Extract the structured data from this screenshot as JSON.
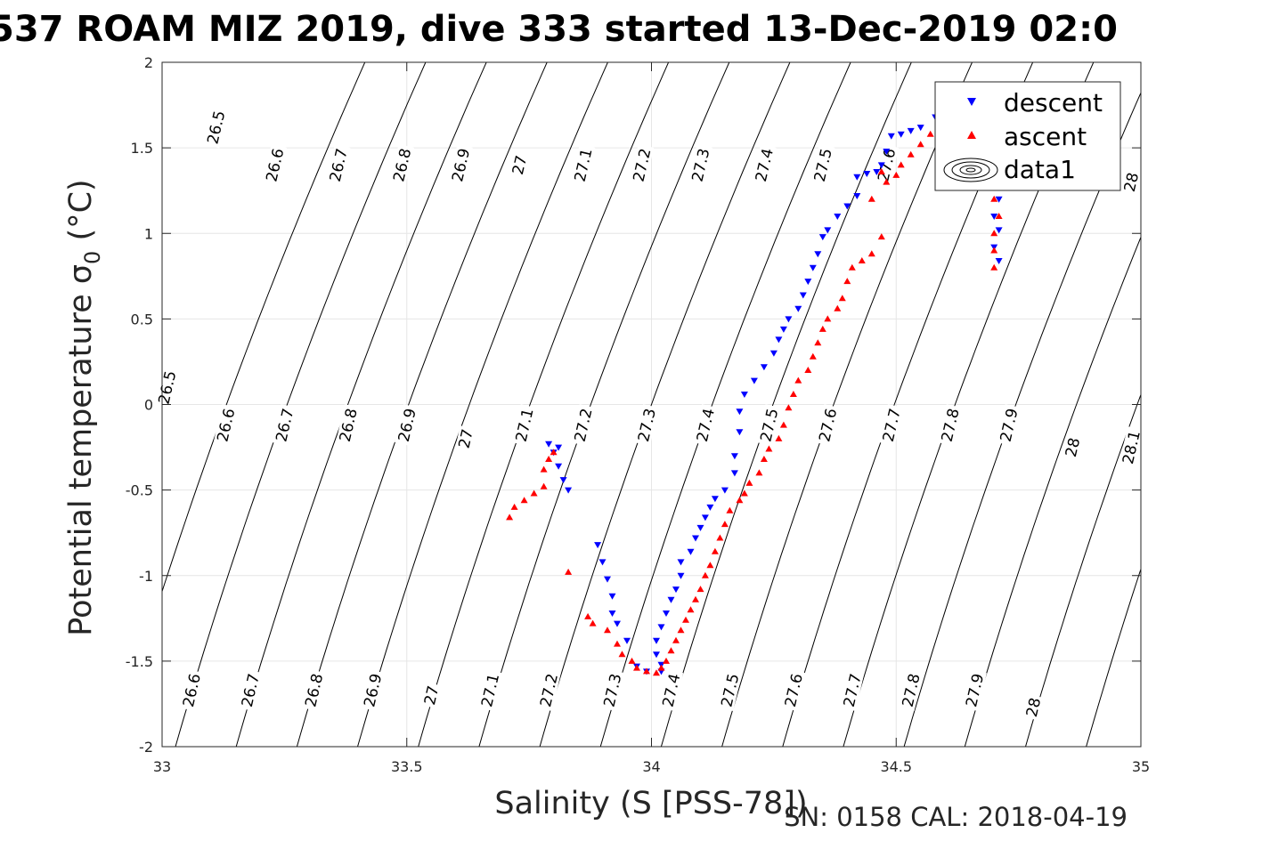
{
  "chart_data": {
    "type": "scatter",
    "title": "537 ROAM MIZ 2019, dive 333 started 13-Dec-2019 02:0",
    "xlabel": "Salinity (S [PSS-78])",
    "ylabel_main": "Potential temperature ",
    "ylabel_sym": "σ",
    "ylabel_sub": "0",
    "ylabel_unit": " (°C)",
    "footer": "SN: 0158  CAL: 2018-04-19",
    "xlim": [
      33,
      35
    ],
    "ylim": [
      -2,
      2
    ],
    "xticks": [
      33,
      33.5,
      34,
      34.5,
      35
    ],
    "xtick_labels": [
      "33",
      "33.5",
      "34",
      "34.5",
      "35"
    ],
    "yticks": [
      -2,
      -1.5,
      -1,
      -0.5,
      0,
      0.5,
      1,
      1.5,
      2
    ],
    "ytick_labels": [
      "-2",
      "-1.5",
      "-1",
      "-0.5",
      "0",
      "0.5",
      "1",
      "1.5",
      "2"
    ],
    "grid": true,
    "legend_position": "top-right",
    "legend": [
      "descent",
      "ascent",
      "data1"
    ],
    "colors": {
      "descent": "#0000ff",
      "ascent": "#ff0000",
      "contour": "#000000",
      "grid": "#e6e6e6"
    },
    "density_contours": {
      "levels": [
        26.5,
        26.6,
        26.7,
        26.8,
        26.9,
        27,
        27.1,
        27.2,
        27.3,
        27.4,
        27.5,
        27.6,
        27.7,
        27.8,
        27.9,
        28,
        28.1
      ],
      "labels": [
        {
          "text": "26.5",
          "s": 33.11,
          "t": 1.62
        },
        {
          "text": "26.6",
          "s": 33.23,
          "t": 1.4
        },
        {
          "text": "26.7",
          "s": 33.36,
          "t": 1.4
        },
        {
          "text": "26.8",
          "s": 33.49,
          "t": 1.4
        },
        {
          "text": "26.9",
          "s": 33.61,
          "t": 1.4
        },
        {
          "text": "27",
          "s": 33.73,
          "t": 1.4
        },
        {
          "text": "27.1",
          "s": 33.86,
          "t": 1.4
        },
        {
          "text": "27.2",
          "s": 33.98,
          "t": 1.4
        },
        {
          "text": "27.3",
          "s": 34.1,
          "t": 1.4
        },
        {
          "text": "27.4",
          "s": 34.23,
          "t": 1.4
        },
        {
          "text": "27.5",
          "s": 34.35,
          "t": 1.4
        },
        {
          "text": "27.6",
          "s": 34.48,
          "t": 1.4
        },
        {
          "text": "28",
          "s": 34.98,
          "t": 1.3
        },
        {
          "text": "26.5",
          "s": 33.01,
          "t": 0.1
        },
        {
          "text": "26.6",
          "s": 33.13,
          "t": -0.12
        },
        {
          "text": "26.7",
          "s": 33.25,
          "t": -0.12
        },
        {
          "text": "26.8",
          "s": 33.38,
          "t": -0.12
        },
        {
          "text": "26.9",
          "s": 33.5,
          "t": -0.12
        },
        {
          "text": "27",
          "s": 33.62,
          "t": -0.2
        },
        {
          "text": "27.1",
          "s": 33.74,
          "t": -0.12
        },
        {
          "text": "27.2",
          "s": 33.86,
          "t": -0.12
        },
        {
          "text": "27.3",
          "s": 33.99,
          "t": -0.12
        },
        {
          "text": "27.4",
          "s": 34.11,
          "t": -0.12
        },
        {
          "text": "27.5",
          "s": 34.24,
          "t": -0.12
        },
        {
          "text": "27.6",
          "s": 34.36,
          "t": -0.12
        },
        {
          "text": "27.7",
          "s": 34.49,
          "t": -0.12
        },
        {
          "text": "27.8",
          "s": 34.61,
          "t": -0.12
        },
        {
          "text": "27.9",
          "s": 34.73,
          "t": -0.12
        },
        {
          "text": "28",
          "s": 34.86,
          "t": -0.25
        },
        {
          "text": "28.1",
          "s": 34.98,
          "t": -0.25
        },
        {
          "text": "26.6",
          "s": 33.06,
          "t": -1.67
        },
        {
          "text": "26.7",
          "s": 33.18,
          "t": -1.67
        },
        {
          "text": "26.8",
          "s": 33.31,
          "t": -1.67
        },
        {
          "text": "26.9",
          "s": 33.43,
          "t": -1.67
        },
        {
          "text": "27",
          "s": 33.55,
          "t": -1.7
        },
        {
          "text": "27.1",
          "s": 33.67,
          "t": -1.67
        },
        {
          "text": "27.2",
          "s": 33.79,
          "t": -1.67
        },
        {
          "text": "27.3",
          "s": 33.92,
          "t": -1.67
        },
        {
          "text": "27.4",
          "s": 34.04,
          "t": -1.67
        },
        {
          "text": "27.5",
          "s": 34.16,
          "t": -1.67
        },
        {
          "text": "27.6",
          "s": 34.29,
          "t": -1.67
        },
        {
          "text": "27.7",
          "s": 34.41,
          "t": -1.67
        },
        {
          "text": "27.8",
          "s": 34.53,
          "t": -1.67
        },
        {
          "text": "27.9",
          "s": 34.66,
          "t": -1.67
        },
        {
          "text": "28",
          "s": 34.78,
          "t": -1.77
        }
      ]
    },
    "series": [
      {
        "name": "descent",
        "marker": "triangle-down",
        "points": [
          [
            34.71,
            0.84
          ],
          [
            34.7,
            0.92
          ],
          [
            34.71,
            1.02
          ],
          [
            34.7,
            1.1
          ],
          [
            34.71,
            1.2
          ],
          [
            34.71,
            1.28
          ],
          [
            34.7,
            1.38
          ],
          [
            34.7,
            1.48
          ],
          [
            34.69,
            1.56
          ],
          [
            34.67,
            1.6
          ],
          [
            34.64,
            1.62
          ],
          [
            34.61,
            1.66
          ],
          [
            34.58,
            1.68
          ],
          [
            34.55,
            1.62
          ],
          [
            34.53,
            1.6
          ],
          [
            34.51,
            1.58
          ],
          [
            34.49,
            1.57
          ],
          [
            34.48,
            1.48
          ],
          [
            34.47,
            1.4
          ],
          [
            34.46,
            1.36
          ],
          [
            34.44,
            1.35
          ],
          [
            34.42,
            1.33
          ],
          [
            34.42,
            1.22
          ],
          [
            34.4,
            1.16
          ],
          [
            34.38,
            1.1
          ],
          [
            34.36,
            1.02
          ],
          [
            34.35,
            0.98
          ],
          [
            34.34,
            0.88
          ],
          [
            34.33,
            0.8
          ],
          [
            34.32,
            0.72
          ],
          [
            34.31,
            0.64
          ],
          [
            34.3,
            0.56
          ],
          [
            34.28,
            0.5
          ],
          [
            34.27,
            0.44
          ],
          [
            34.26,
            0.38
          ],
          [
            34.25,
            0.3
          ],
          [
            34.23,
            0.22
          ],
          [
            34.21,
            0.14
          ],
          [
            34.19,
            0.06
          ],
          [
            34.18,
            -0.04
          ],
          [
            34.18,
            -0.16
          ],
          [
            34.17,
            -0.3
          ],
          [
            34.17,
            -0.4
          ],
          [
            34.15,
            -0.5
          ],
          [
            34.13,
            -0.55
          ],
          [
            34.12,
            -0.6
          ],
          [
            34.11,
            -0.66
          ],
          [
            34.1,
            -0.72
          ],
          [
            34.09,
            -0.78
          ],
          [
            34.08,
            -0.86
          ],
          [
            34.06,
            -0.92
          ],
          [
            34.06,
            -1.0
          ],
          [
            34.05,
            -1.08
          ],
          [
            34.04,
            -1.14
          ],
          [
            34.03,
            -1.22
          ],
          [
            34.02,
            -1.3
          ],
          [
            34.01,
            -1.38
          ],
          [
            34.01,
            -1.46
          ],
          [
            34.02,
            -1.52
          ],
          [
            34.02,
            -1.56
          ],
          [
            33.99,
            -1.56
          ],
          [
            33.97,
            -1.53
          ],
          [
            33.95,
            -1.38
          ],
          [
            33.93,
            -1.28
          ],
          [
            33.92,
            -1.22
          ],
          [
            33.92,
            -1.12
          ],
          [
            33.91,
            -1.02
          ],
          [
            33.9,
            -0.92
          ],
          [
            33.89,
            -0.82
          ],
          [
            33.83,
            -0.5
          ],
          [
            33.82,
            -0.44
          ],
          [
            33.81,
            -0.36
          ],
          [
            33.8,
            -0.28
          ],
          [
            33.81,
            -0.25
          ],
          [
            33.79,
            -0.23
          ]
        ]
      },
      {
        "name": "ascent",
        "marker": "triangle-up",
        "points": [
          [
            34.7,
            0.8
          ],
          [
            34.7,
            0.9
          ],
          [
            34.7,
            1.0
          ],
          [
            34.71,
            1.1
          ],
          [
            34.7,
            1.2
          ],
          [
            34.71,
            1.3
          ],
          [
            34.7,
            1.38
          ],
          [
            34.68,
            1.45
          ],
          [
            34.66,
            1.52
          ],
          [
            34.64,
            1.58
          ],
          [
            34.62,
            1.62
          ],
          [
            34.6,
            1.64
          ],
          [
            34.57,
            1.58
          ],
          [
            34.55,
            1.52
          ],
          [
            34.53,
            1.46
          ],
          [
            34.51,
            1.4
          ],
          [
            34.5,
            1.34
          ],
          [
            34.48,
            1.3
          ],
          [
            34.47,
            1.36
          ],
          [
            34.45,
            1.2
          ],
          [
            34.47,
            0.98
          ],
          [
            34.45,
            0.88
          ],
          [
            34.43,
            0.84
          ],
          [
            34.41,
            0.8
          ],
          [
            34.4,
            0.72
          ],
          [
            34.39,
            0.62
          ],
          [
            34.38,
            0.56
          ],
          [
            34.36,
            0.5
          ],
          [
            34.35,
            0.44
          ],
          [
            34.34,
            0.36
          ],
          [
            34.33,
            0.28
          ],
          [
            34.32,
            0.2
          ],
          [
            34.3,
            0.14
          ],
          [
            34.29,
            0.06
          ],
          [
            34.28,
            -0.02
          ],
          [
            34.27,
            -0.12
          ],
          [
            34.26,
            -0.2
          ],
          [
            34.24,
            -0.26
          ],
          [
            34.23,
            -0.32
          ],
          [
            34.22,
            -0.4
          ],
          [
            34.2,
            -0.46
          ],
          [
            34.19,
            -0.52
          ],
          [
            34.18,
            -0.56
          ],
          [
            34.16,
            -0.62
          ],
          [
            34.15,
            -0.7
          ],
          [
            34.14,
            -0.78
          ],
          [
            34.13,
            -0.86
          ],
          [
            34.12,
            -0.94
          ],
          [
            34.11,
            -1.0
          ],
          [
            34.1,
            -1.08
          ],
          [
            34.09,
            -1.14
          ],
          [
            34.08,
            -1.2
          ],
          [
            34.07,
            -1.26
          ],
          [
            34.06,
            -1.32
          ],
          [
            34.05,
            -1.38
          ],
          [
            34.04,
            -1.44
          ],
          [
            34.03,
            -1.5
          ],
          [
            34.02,
            -1.54
          ],
          [
            34.01,
            -1.57
          ],
          [
            33.99,
            -1.56
          ],
          [
            33.97,
            -1.54
          ],
          [
            33.96,
            -1.5
          ],
          [
            33.94,
            -1.46
          ],
          [
            33.93,
            -1.4
          ],
          [
            33.91,
            -1.32
          ],
          [
            33.88,
            -1.28
          ],
          [
            33.87,
            -1.24
          ],
          [
            33.83,
            -0.98
          ],
          [
            33.8,
            -0.28
          ],
          [
            33.79,
            -0.32
          ],
          [
            33.78,
            -0.38
          ],
          [
            33.78,
            -0.48
          ],
          [
            33.76,
            -0.52
          ],
          [
            33.74,
            -0.56
          ],
          [
            33.72,
            -0.6
          ],
          [
            33.71,
            -0.66
          ]
        ]
      }
    ]
  }
}
